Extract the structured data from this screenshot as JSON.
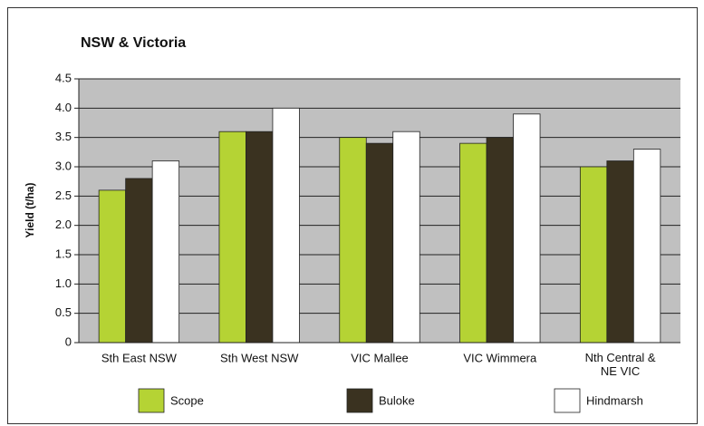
{
  "chart_data": {
    "type": "bar",
    "title": "NSW & Victoria",
    "y_label": "Yield (t/ha)",
    "categories": [
      "Sth East NSW",
      "Sth West NSW",
      "VIC Mallee",
      "VIC Wimmera",
      "Nth Central & NE VIC"
    ],
    "series": [
      {
        "name": "Scope",
        "color": "#b5d334",
        "values": [
          2.6,
          3.6,
          3.5,
          3.4,
          3.0
        ]
      },
      {
        "name": "Buloke",
        "color": "#3a3220",
        "values": [
          2.8,
          3.6,
          3.4,
          3.5,
          3.1
        ]
      },
      {
        "name": "Hindmarsh",
        "color": "#ffffff",
        "values": [
          3.1,
          4.0,
          3.6,
          3.9,
          3.3
        ]
      }
    ],
    "ylim": [
      0,
      4.5
    ],
    "yticks": [
      0,
      0.5,
      {
        "value": 1,
        "label": "1.0"
      },
      1.5,
      {
        "value": 2,
        "label": "2.0"
      },
      2.5,
      {
        "value": 3,
        "label": "3.0"
      },
      3.5,
      {
        "value": 4,
        "label": "4.0"
      },
      4.5
    ],
    "grid": true,
    "plot_background": "#c0c0c0",
    "legend": "bottom"
  }
}
